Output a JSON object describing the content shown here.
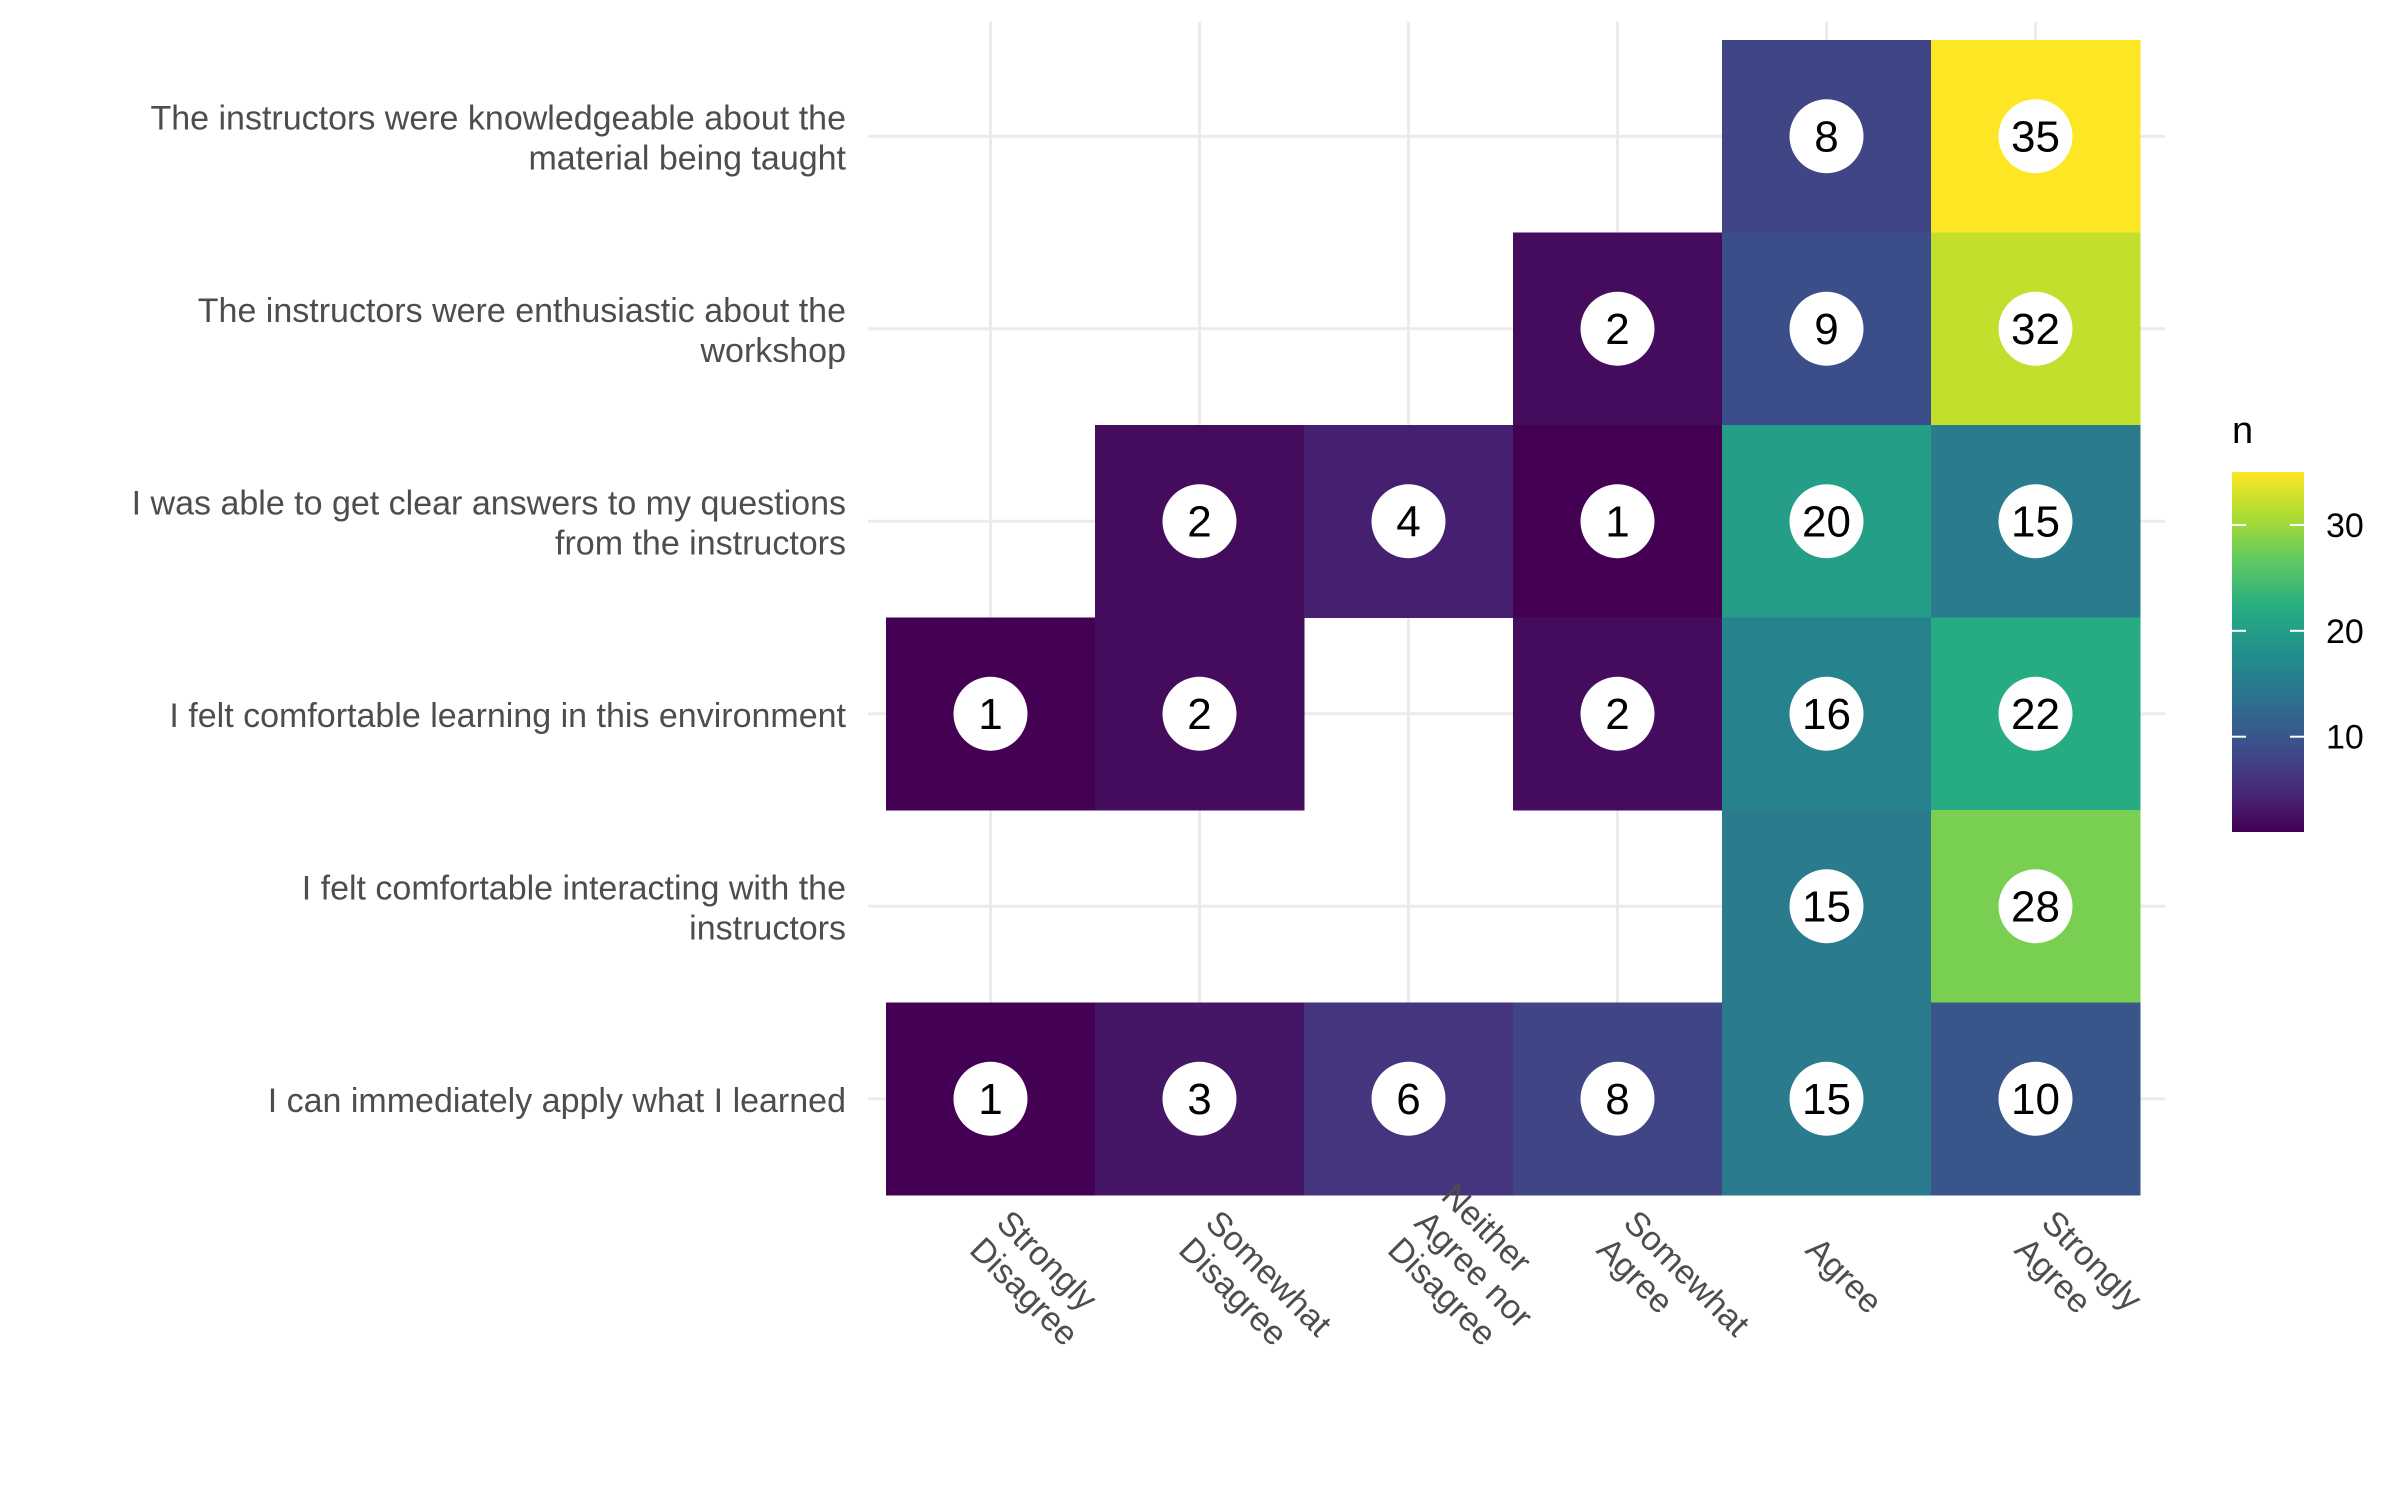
{
  "chart_data": {
    "type": "heatmap",
    "x_categories": [
      "Strongly Disagree",
      "Somewhat Disagree",
      "Neither Agree nor Disagree",
      "Somewhat Agree",
      "Agree",
      "Strongly Agree"
    ],
    "y_categories": [
      "The instructors were knowledgeable about the material being taught",
      "The instructors were enthusiastic about the workshop",
      "I was able to get clear answers to my questions from the instructors",
      "I felt comfortable learning in this environment",
      "I felt comfortable interacting with the instructors",
      "I can immediately apply what I learned"
    ],
    "x_tick_labels": [
      [
        "Strongly",
        "Disagree"
      ],
      [
        "Somewhat",
        "Disagree"
      ],
      [
        "Neither",
        "Agree nor",
        "Disagree"
      ],
      [
        "Somewhat",
        "Agree"
      ],
      [
        "Agree"
      ],
      [
        "Strongly",
        "Agree"
      ]
    ],
    "y_tick_labels": [
      [
        "The instructors were knowledgeable about the",
        "material being taught"
      ],
      [
        "The instructors were enthusiastic about the",
        "workshop"
      ],
      [
        "I was able to get clear answers to my questions",
        "from the instructors"
      ],
      [
        "I felt comfortable learning in this environment"
      ],
      [
        "I felt comfortable interacting with the",
        "instructors"
      ],
      [
        "I can immediately apply what I learned"
      ]
    ],
    "values": [
      [
        null,
        null,
        null,
        null,
        8,
        35
      ],
      [
        null,
        null,
        null,
        2,
        9,
        32
      ],
      [
        null,
        2,
        4,
        1,
        20,
        15
      ],
      [
        1,
        2,
        null,
        2,
        16,
        22
      ],
      [
        null,
        null,
        null,
        null,
        15,
        28
      ],
      [
        1,
        3,
        6,
        8,
        15,
        10
      ]
    ],
    "legend": {
      "title": "n",
      "ticks": [
        10,
        20,
        30
      ],
      "min": 1,
      "max": 35,
      "palette": "viridis",
      "placement": "right"
    },
    "grid": true
  }
}
